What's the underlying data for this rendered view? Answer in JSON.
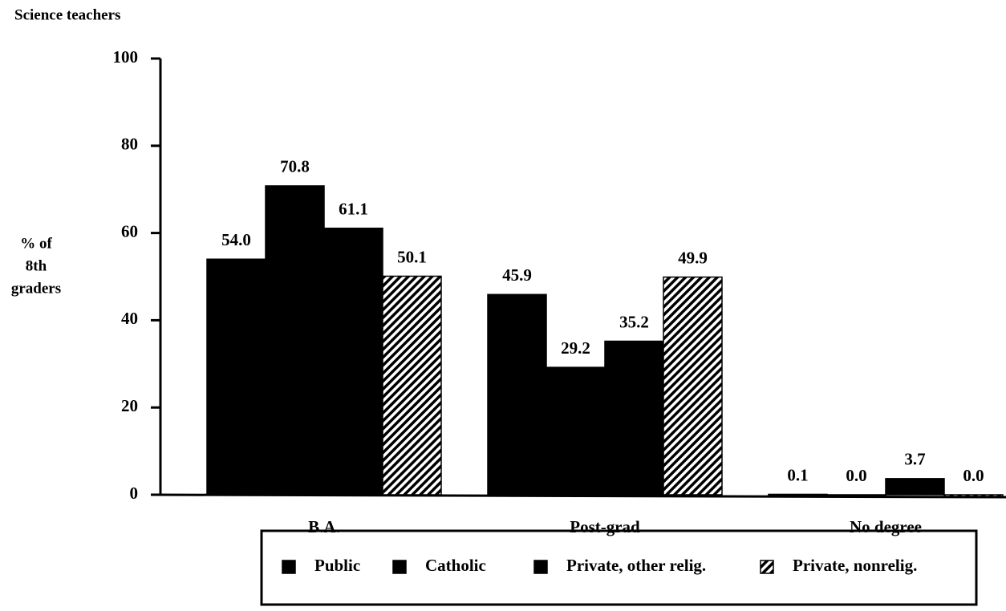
{
  "chart_data": {
    "type": "bar",
    "title": "Science teachers",
    "ylabel": [
      "% of",
      "8th",
      "graders"
    ],
    "categories": [
      "B.A.",
      "Post-grad",
      "No degree"
    ],
    "series": [
      {
        "name": "Public",
        "color": "#000000",
        "values": [
          54.0,
          45.9,
          0.1
        ],
        "value_labels": [
          "54.0",
          "45.9",
          "0.1"
        ]
      },
      {
        "name": "Catholic",
        "color": "#000000",
        "values": [
          70.8,
          29.2,
          0.0
        ],
        "value_labels": [
          "70.8",
          "29.2",
          "0.0"
        ]
      },
      {
        "name": "Private, other relig.",
        "color": "#000000",
        "values": [
          61.1,
          35.2,
          3.7
        ],
        "value_labels": [
          "61.1",
          "35.2",
          "3.7"
        ]
      },
      {
        "name": "Private, nonrelig.",
        "color": "#000000",
        "pattern": "hatch",
        "values": [
          50.1,
          49.9,
          0.0
        ],
        "value_labels": [
          "50.1",
          "49.9",
          "0.0"
        ]
      }
    ],
    "ylim": [
      0,
      100
    ],
    "yticks": [
      0,
      20,
      40,
      60,
      80,
      100
    ],
    "grid": false,
    "legend": "bottom"
  }
}
